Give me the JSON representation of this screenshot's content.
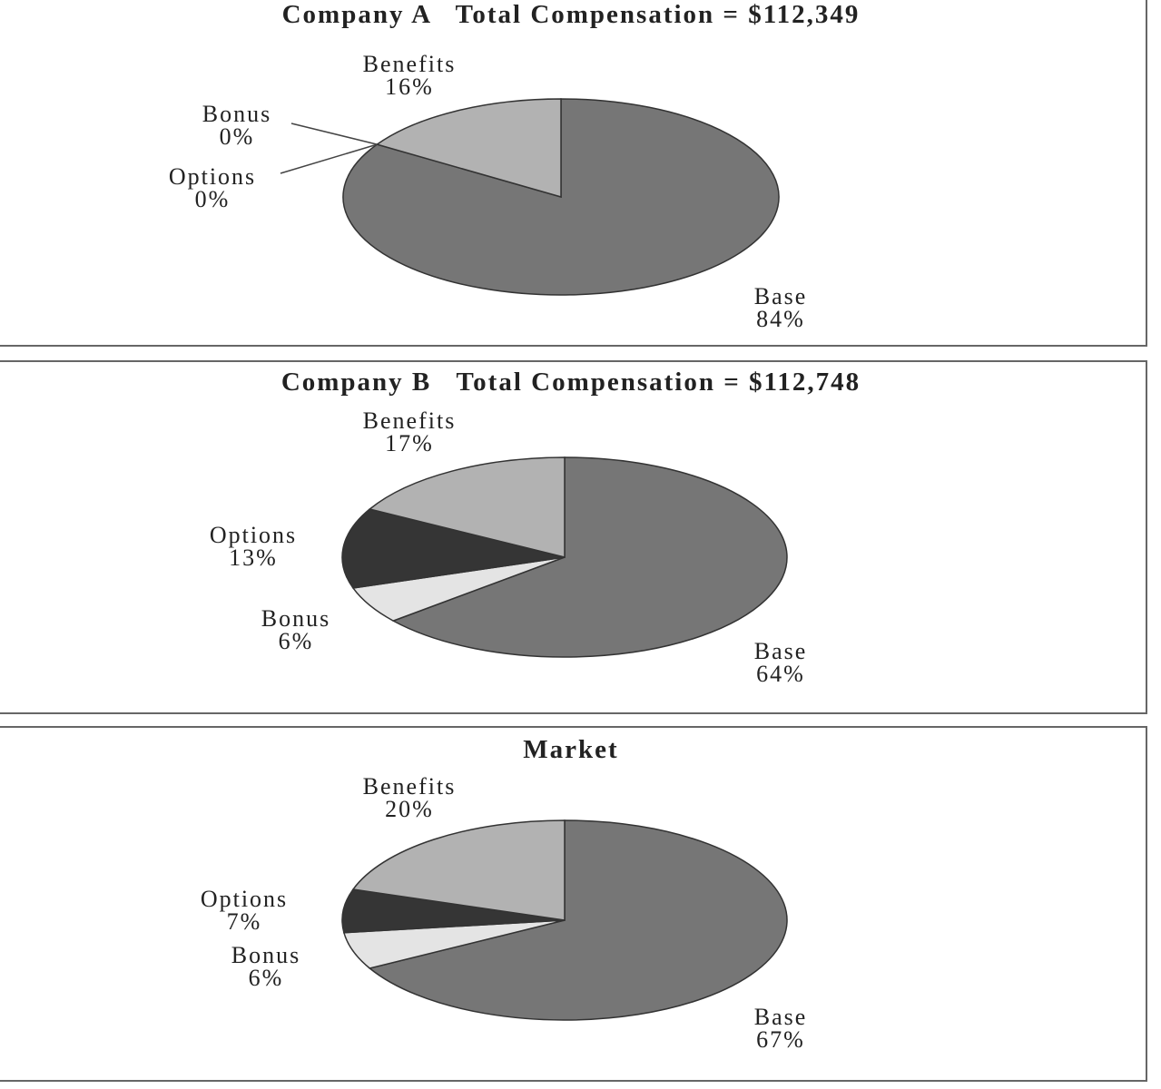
{
  "colors": {
    "Base": "#767676",
    "Bonus": "#e4e4e4",
    "Options": "#353535",
    "Benefits": "#b2b2b2"
  },
  "chart_data": [
    {
      "type": "pie",
      "title": "Company A   Total Compensation = $112,349",
      "slices": [
        {
          "label": "Base",
          "value": 84,
          "text": "84%"
        },
        {
          "label": "Bonus",
          "value": 0,
          "text": "0%"
        },
        {
          "label": "Options",
          "value": 0,
          "text": "0%"
        },
        {
          "label": "Benefits",
          "value": 16,
          "text": "16%"
        }
      ]
    },
    {
      "type": "pie",
      "title": "Company B   Total Compensation = $112,748",
      "slices": [
        {
          "label": "Base",
          "value": 64,
          "text": "64%"
        },
        {
          "label": "Bonus",
          "value": 6,
          "text": "6%"
        },
        {
          "label": "Options",
          "value": 13,
          "text": "13%"
        },
        {
          "label": "Benefits",
          "value": 17,
          "text": "17%"
        }
      ]
    },
    {
      "type": "pie",
      "title": "Market",
      "slices": [
        {
          "label": "Base",
          "value": 67,
          "text": "67%"
        },
        {
          "label": "Bonus",
          "value": 6,
          "text": "6%"
        },
        {
          "label": "Options",
          "value": 7,
          "text": "7%"
        },
        {
          "label": "Benefits",
          "value": 20,
          "text": "20%"
        }
      ]
    }
  ]
}
